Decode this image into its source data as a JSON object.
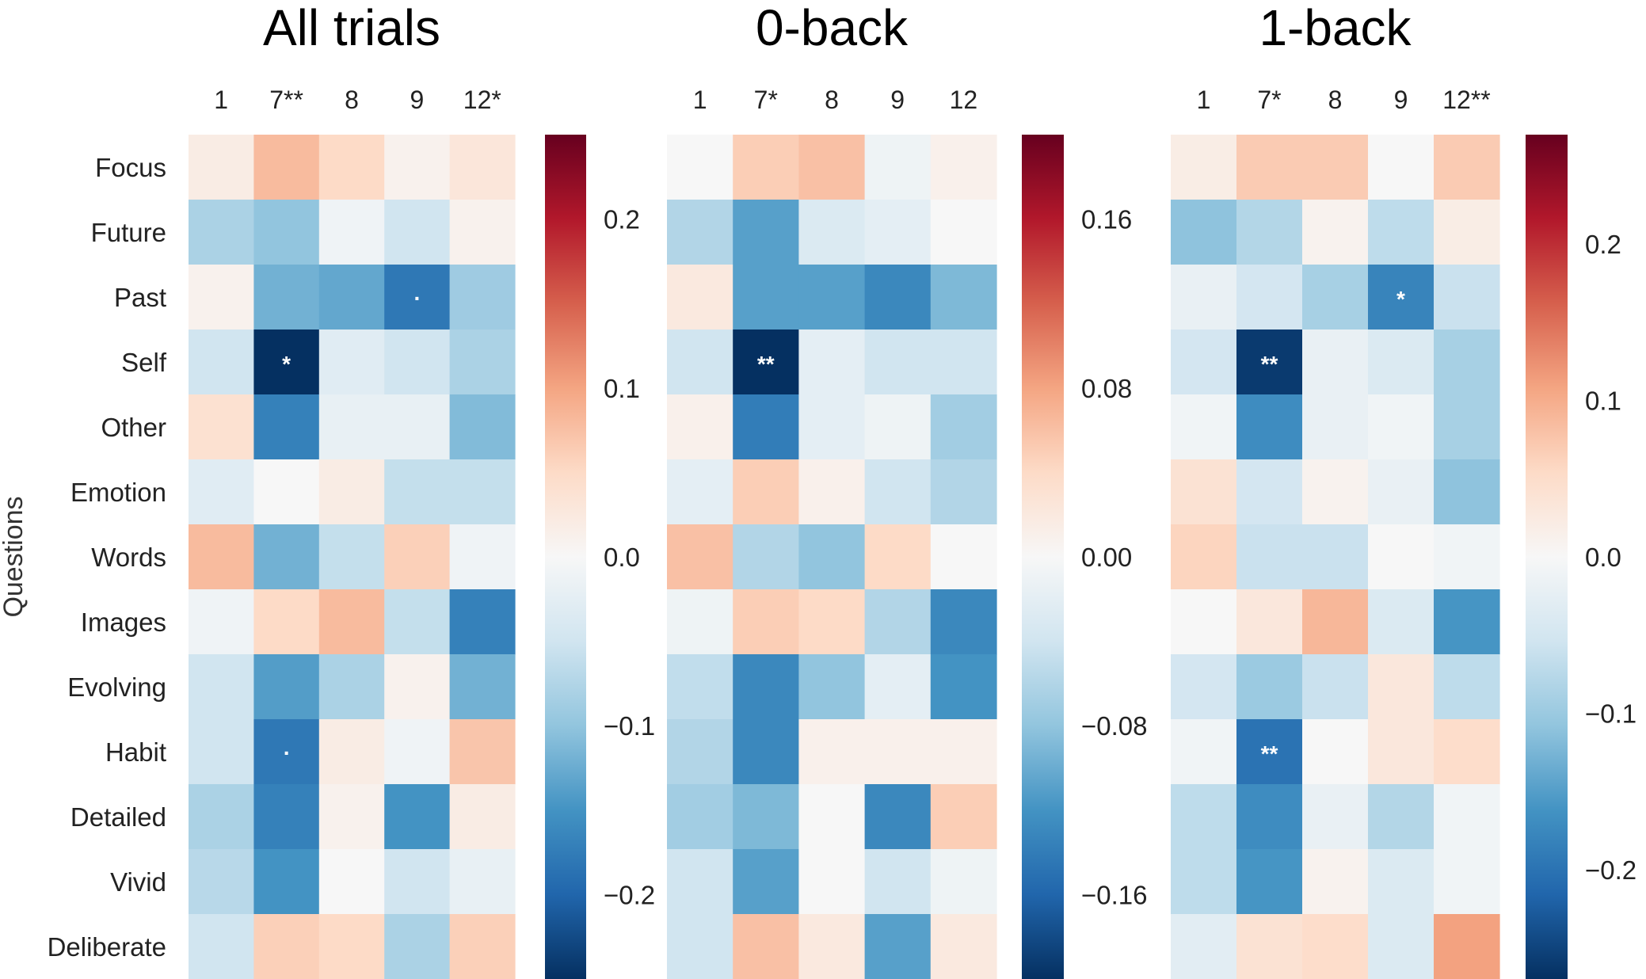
{
  "chart_data": [
    {
      "type": "heatmap",
      "title": "All trials",
      "ylabel": "Questions",
      "columns": [
        "1",
        "7**",
        "8",
        "9",
        "12*"
      ],
      "rows": [
        "Focus",
        "Future",
        "Past",
        "Self",
        "Other",
        "Emotion",
        "Words",
        "Images",
        "Evolving",
        "Habit",
        "Detailed",
        "Vivid",
        "Deliberate"
      ],
      "values": [
        [
          0.02,
          0.08,
          0.05,
          0.01,
          0.03
        ],
        [
          -0.08,
          -0.1,
          -0.01,
          -0.05,
          0.01
        ],
        [
          0.01,
          -0.12,
          -0.13,
          -0.18,
          -0.09
        ],
        [
          -0.05,
          -0.25,
          -0.03,
          -0.05,
          -0.08
        ],
        [
          0.04,
          -0.17,
          -0.02,
          -0.02,
          -0.11
        ],
        [
          -0.03,
          0.0,
          0.02,
          -0.06,
          -0.06
        ],
        [
          0.08,
          -0.12,
          -0.06,
          0.06,
          -0.01
        ],
        [
          -0.01,
          0.05,
          0.08,
          -0.06,
          -0.17
        ],
        [
          -0.05,
          -0.14,
          -0.08,
          0.01,
          -0.12
        ],
        [
          -0.05,
          -0.18,
          0.02,
          -0.01,
          0.07
        ],
        [
          -0.08,
          -0.17,
          0.01,
          -0.15,
          0.02
        ],
        [
          -0.07,
          -0.15,
          0.0,
          -0.05,
          -0.02
        ],
        [
          -0.05,
          0.06,
          0.05,
          -0.08,
          0.06
        ]
      ],
      "annotations": [
        {
          "row": "Past",
          "col": "9",
          "text": "."
        },
        {
          "row": "Self",
          "col": "7**",
          "text": "*"
        },
        {
          "row": "Habit",
          "col": "7**",
          "text": "."
        }
      ],
      "colorbar": {
        "min": -0.25,
        "max": 0.25,
        "ticks": [
          0.2,
          0.1,
          0.0,
          -0.1,
          -0.2
        ],
        "tick_labels": [
          "0.2",
          "0.1",
          "0.0",
          "−0.1",
          "−0.2"
        ]
      }
    },
    {
      "type": "heatmap",
      "title": "0-back",
      "columns": [
        "1",
        "7*",
        "8",
        "9",
        "12"
      ],
      "rows": [
        "Focus",
        "Future",
        "Past",
        "Self",
        "Other",
        "Emotion",
        "Words",
        "Images",
        "Evolving",
        "Habit",
        "Detailed",
        "Vivid",
        "Deliberate"
      ],
      "values": [
        [
          0.0,
          0.05,
          0.06,
          -0.01,
          0.01
        ],
        [
          -0.06,
          -0.11,
          -0.03,
          -0.02,
          0.0
        ],
        [
          0.02,
          -0.11,
          -0.11,
          -0.13,
          -0.09
        ],
        [
          -0.04,
          -0.2,
          -0.02,
          -0.04,
          -0.04
        ],
        [
          0.01,
          -0.14,
          -0.02,
          -0.01,
          -0.07
        ],
        [
          -0.02,
          0.05,
          0.01,
          -0.04,
          -0.06
        ],
        [
          0.06,
          -0.06,
          -0.08,
          0.04,
          0.0
        ],
        [
          -0.01,
          0.05,
          0.04,
          -0.06,
          -0.13
        ],
        [
          -0.05,
          -0.13,
          -0.08,
          -0.02,
          -0.12
        ],
        [
          -0.06,
          -0.13,
          0.01,
          0.01,
          0.01
        ],
        [
          -0.07,
          -0.09,
          0.0,
          -0.13,
          0.05
        ],
        [
          -0.04,
          -0.11,
          0.0,
          -0.04,
          -0.01
        ],
        [
          -0.04,
          0.06,
          0.02,
          -0.11,
          0.02
        ]
      ],
      "annotations": [
        {
          "row": "Self",
          "col": "7*",
          "text": "**"
        }
      ],
      "colorbar": {
        "min": -0.2,
        "max": 0.2,
        "ticks": [
          0.16,
          0.08,
          0.0,
          -0.08,
          -0.16
        ],
        "tick_labels": [
          "0.16",
          "0.08",
          "0.00",
          "−0.08",
          "−0.16"
        ]
      }
    },
    {
      "type": "heatmap",
      "title": "1-back",
      "columns": [
        "1",
        "7*",
        "8",
        "9",
        "12**"
      ],
      "rows": [
        "Focus",
        "Future",
        "Past",
        "Self",
        "Other",
        "Emotion",
        "Words",
        "Images",
        "Evolving",
        "Habit",
        "Detailed",
        "Vivid",
        "Deliberate"
      ],
      "values": [
        [
          0.02,
          0.07,
          0.07,
          0.0,
          0.07
        ],
        [
          -0.11,
          -0.08,
          0.01,
          -0.07,
          0.02
        ],
        [
          -0.02,
          -0.05,
          -0.09,
          -0.18,
          -0.06
        ],
        [
          -0.05,
          -0.26,
          -0.02,
          -0.04,
          -0.09
        ],
        [
          -0.01,
          -0.17,
          -0.02,
          -0.01,
          -0.09
        ],
        [
          0.04,
          -0.05,
          0.01,
          -0.02,
          -0.11
        ],
        [
          0.06,
          -0.06,
          -0.06,
          0.0,
          -0.01
        ],
        [
          0.0,
          0.03,
          0.09,
          -0.04,
          -0.16
        ],
        [
          -0.05,
          -0.1,
          -0.06,
          0.03,
          -0.07
        ],
        [
          -0.01,
          -0.2,
          0.0,
          0.03,
          0.05
        ],
        [
          -0.07,
          -0.17,
          -0.02,
          -0.08,
          -0.01
        ],
        [
          -0.07,
          -0.16,
          0.01,
          -0.04,
          -0.01
        ],
        [
          -0.03,
          0.04,
          0.05,
          -0.04,
          0.11
        ]
      ],
      "annotations": [
        {
          "row": "Past",
          "col": "9",
          "text": "*"
        },
        {
          "row": "Self",
          "col": "7*",
          "text": "**"
        },
        {
          "row": "Habit",
          "col": "7*",
          "text": "**"
        }
      ],
      "colorbar": {
        "min": -0.27,
        "max": 0.27,
        "ticks": [
          0.2,
          0.1,
          0.0,
          -0.1,
          -0.2
        ],
        "tick_labels": [
          "0.2",
          "0.1",
          "0.0",
          "−0.1",
          "−0.2"
        ]
      }
    }
  ]
}
